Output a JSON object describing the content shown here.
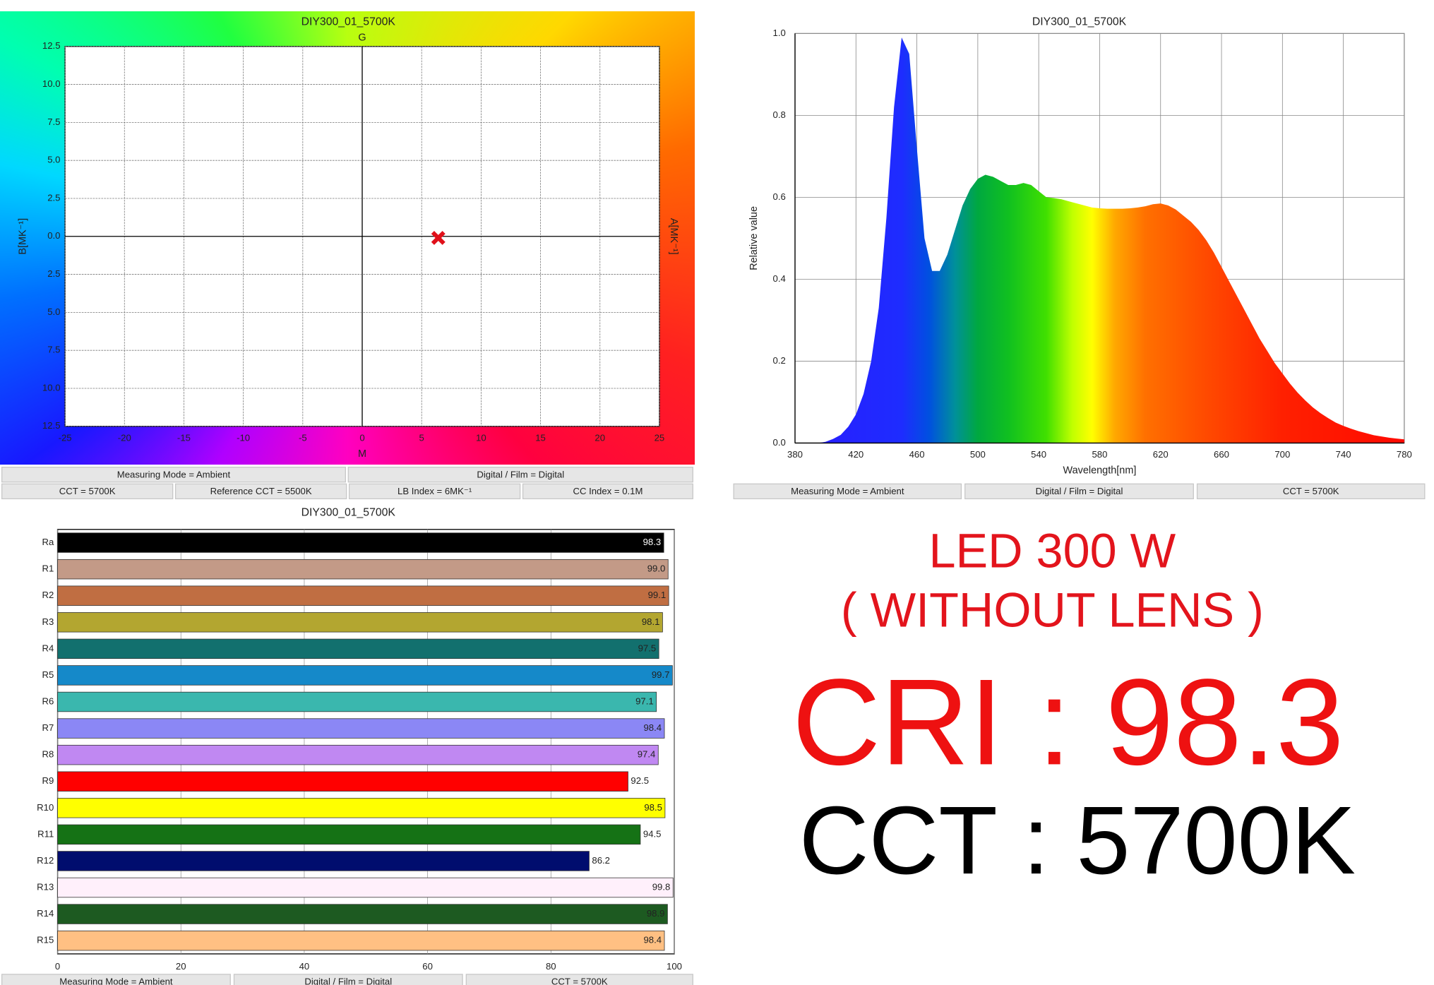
{
  "chart_data": [
    {
      "type": "scatter",
      "title": "DIY300_01_5700K",
      "top_label": "G",
      "bottom_label": "M",
      "ylabel": "B[MK⁻¹]",
      "right_label": "A[MK⁻¹]",
      "x": [
        6.4
      ],
      "values": [
        -0.1
      ],
      "color": "#e0101a",
      "xlim": [
        -25,
        25
      ],
      "xticks": [
        -25,
        -20,
        -15,
        -10,
        -5,
        0,
        5,
        10,
        15,
        20,
        25
      ],
      "ylim": [
        -12.5,
        12.5
      ],
      "yticks": [
        {
          "value": 12.5,
          "label": "12.5"
        },
        {
          "value": 10,
          "label": "10.0"
        },
        {
          "value": 7.5,
          "label": "7.5"
        },
        {
          "value": 5,
          "label": "5.0"
        },
        {
          "value": 2.5,
          "label": "2.5"
        },
        {
          "value": 0,
          "label": "0.0"
        },
        {
          "value": -2.5,
          "label": "2.5"
        },
        {
          "value": -5,
          "label": "5.0"
        },
        {
          "value": -7.5,
          "label": "7.5"
        },
        {
          "value": -10,
          "label": "10.0"
        },
        {
          "value": -12.5,
          "label": "12.5"
        }
      ],
      "grid": true,
      "status": [
        [
          "Measuring Mode = Ambient",
          "Digital / Film = Digital"
        ],
        [
          "CCT = 5700K",
          "Reference CCT = 5500K",
          "LB Index = 6MK⁻¹",
          "CC Index = 0.1M"
        ]
      ]
    },
    {
      "type": "area",
      "title": "DIY300_01_5700K",
      "xlabel": "Wavelength[nm]",
      "ylabel": "Relative value",
      "x": [
        380,
        385,
        390,
        395,
        400,
        405,
        410,
        415,
        420,
        425,
        430,
        435,
        440,
        445,
        450,
        455,
        460,
        465,
        470,
        475,
        480,
        485,
        490,
        495,
        500,
        505,
        510,
        515,
        520,
        525,
        530,
        535,
        540,
        545,
        550,
        555,
        560,
        565,
        570,
        575,
        580,
        585,
        590,
        595,
        600,
        605,
        610,
        615,
        620,
        625,
        630,
        635,
        640,
        645,
        650,
        655,
        660,
        665,
        670,
        675,
        680,
        685,
        690,
        695,
        700,
        705,
        710,
        715,
        720,
        725,
        730,
        735,
        740,
        745,
        750,
        755,
        760,
        765,
        770,
        775,
        780
      ],
      "values": [
        0,
        0,
        0,
        0,
        0.003,
        0.01,
        0.02,
        0.04,
        0.07,
        0.12,
        0.2,
        0.33,
        0.55,
        0.82,
        0.99,
        0.95,
        0.72,
        0.5,
        0.42,
        0.42,
        0.46,
        0.52,
        0.58,
        0.62,
        0.645,
        0.655,
        0.65,
        0.64,
        0.63,
        0.63,
        0.635,
        0.63,
        0.615,
        0.6,
        0.598,
        0.595,
        0.59,
        0.585,
        0.58,
        0.575,
        0.573,
        0.572,
        0.572,
        0.572,
        0.573,
        0.575,
        0.578,
        0.583,
        0.585,
        0.58,
        0.57,
        0.555,
        0.54,
        0.52,
        0.495,
        0.465,
        0.43,
        0.395,
        0.36,
        0.325,
        0.29,
        0.255,
        0.225,
        0.195,
        0.17,
        0.145,
        0.123,
        0.104,
        0.087,
        0.073,
        0.061,
        0.05,
        0.042,
        0.035,
        0.029,
        0.024,
        0.019,
        0.016,
        0.013,
        0.011,
        0.009
      ],
      "xlim": [
        380,
        780
      ],
      "xticks": [
        380,
        420,
        460,
        500,
        540,
        580,
        620,
        660,
        700,
        740,
        780
      ],
      "ylim": [
        0,
        1
      ],
      "yticks": [
        {
          "value": 0,
          "label": "0.0"
        },
        0.2,
        0.4,
        0.6,
        0.8,
        {
          "value": 1,
          "label": "1.0"
        }
      ],
      "grid": true,
      "status": [
        [
          "Measuring Mode = Ambient",
          "Digital / Film = Digital",
          "CCT = 5700K"
        ]
      ]
    },
    {
      "type": "barh",
      "title": "DIY300_01_5700K",
      "categories": [
        "Ra",
        "R1",
        "R2",
        "R3",
        "R4",
        "R5",
        "R6",
        "R7",
        "R8",
        "R9",
        "R10",
        "R11",
        "R12",
        "R13",
        "R14",
        "R15"
      ],
      "values": [
        98.3,
        99.0,
        99.1,
        98.1,
        97.5,
        99.7,
        97.1,
        98.4,
        97.4,
        92.5,
        98.5,
        94.5,
        86.2,
        99.8,
        98.9,
        98.4
      ],
      "value_labels": [
        "98.3",
        "99.0",
        "99.1",
        "98.1",
        "97.5",
        "99.7",
        "97.1",
        "98.4",
        "97.4",
        "92.5",
        "98.5",
        "94.5",
        "86.2",
        "99.8",
        "98.9",
        "98.4"
      ],
      "colors": [
        "#000000",
        "#c39a87",
        "#c06e42",
        "#b3a630",
        "#12706e",
        "#1589c9",
        "#3ab7ae",
        "#8b87f5",
        "#c088f2",
        "#ff0000",
        "#ffff00",
        "#157215",
        "#000d6e",
        "#fff0fb",
        "#1d5a21",
        "#ffc083"
      ],
      "xlim": [
        0,
        100
      ],
      "xticks": [
        0,
        20,
        40,
        60,
        80,
        100
      ],
      "grid": true,
      "status": [
        [
          "Measuring Mode = Ambient",
          "Digital / Film = Digital",
          "CCT = 5700K"
        ]
      ]
    }
  ],
  "caption": {
    "lines": [
      "LED 300 W",
      "( WITHOUT LENS )",
      "CRI : 98.3",
      "CCT : 5700K"
    ]
  }
}
